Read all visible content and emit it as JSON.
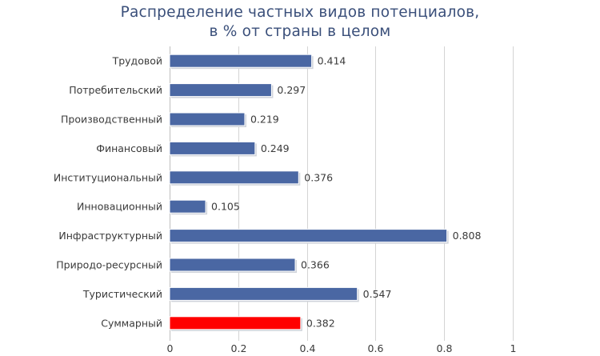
{
  "chart_data": {
    "type": "bar",
    "orientation": "horizontal",
    "title_lines": [
      "Распределение частных видов потенциалов,",
      "в % от страны в целом"
    ],
    "categories": [
      "Трудовой",
      "Потребительский",
      "Производственный",
      "Финансовый",
      "Институциональный",
      "Инновационный",
      "Инфраструктурный",
      "Природо-ресурсный",
      "Туристический",
      "Суммарный"
    ],
    "values": [
      0.414,
      0.297,
      0.219,
      0.249,
      0.376,
      0.105,
      0.808,
      0.366,
      0.547,
      0.382
    ],
    "value_labels": [
      "0.414",
      "0.297",
      "0.219",
      "0.249",
      "0.376",
      "0.105",
      "0.808",
      "0.366",
      "0.547",
      "0.382"
    ],
    "xlim": [
      0,
      1
    ],
    "x_ticks": [
      0,
      0.2,
      0.4,
      0.6,
      0.8,
      1
    ],
    "x_tick_labels": [
      "0",
      "0.2",
      "0.4",
      "0.6",
      "0.8",
      "1"
    ],
    "grid": "vertical",
    "colors": {
      "bar": "#4a67a3",
      "highlight_bar": "#ff0000",
      "bar_shadow": "#cfd3da",
      "grid": "#d4d4d4",
      "text": "#3a3a3a",
      "title": "#3a4f7a"
    },
    "highlight_category": "Суммарный"
  }
}
